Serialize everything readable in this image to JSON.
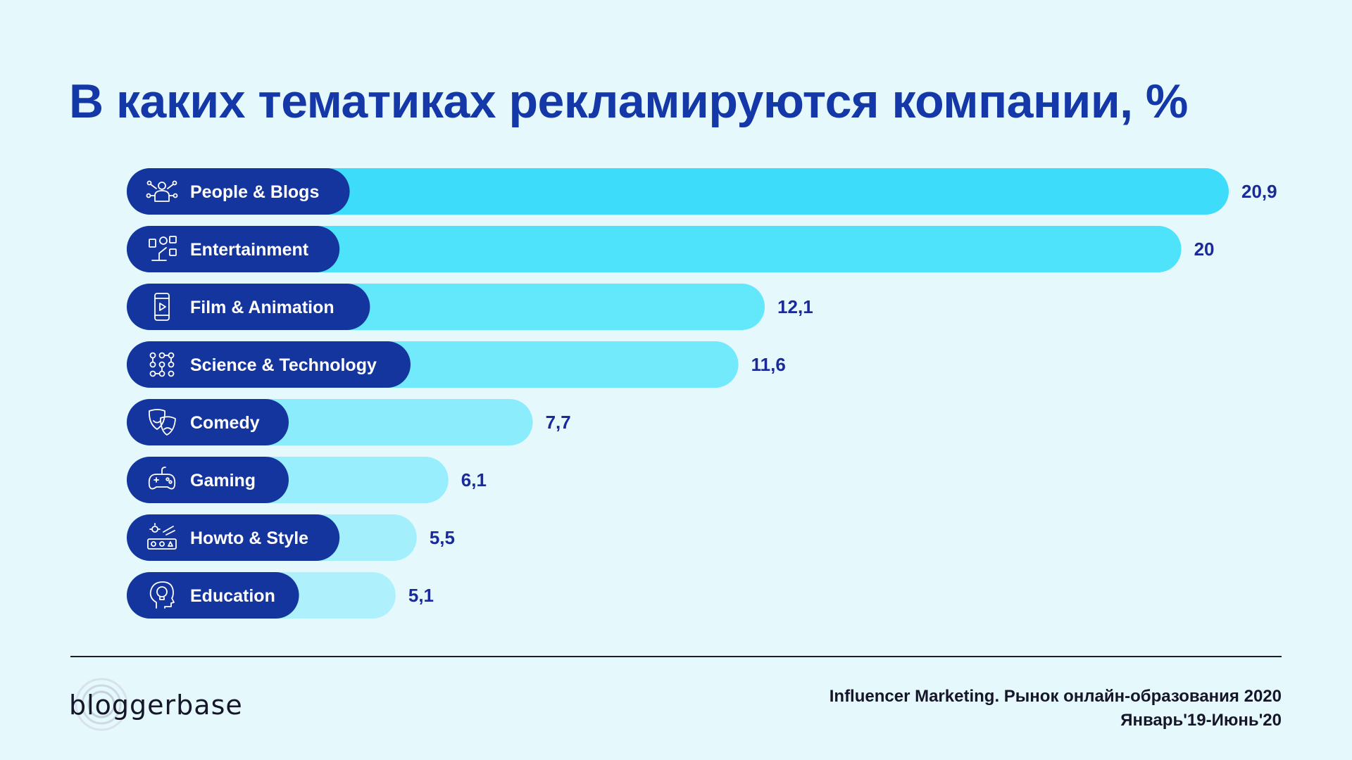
{
  "title": "В каких тематиках рекламируются компании, %",
  "chart_data": {
    "type": "bar",
    "orientation": "horizontal",
    "title": "В каких тематиках рекламируются компании, %",
    "categories": [
      "People & Blogs",
      "Entertainment",
      "Film & Animation",
      "Science & Technology",
      "Comedy",
      "Gaming",
      "Howto & Style",
      "Education"
    ],
    "values": [
      20.9,
      20,
      12.1,
      11.6,
      7.7,
      6.1,
      5.5,
      5.1
    ],
    "value_labels": [
      "20,9",
      "20",
      "12,1",
      "11,6",
      "7,7",
      "6,1",
      "5,5",
      "5,1"
    ],
    "icons": [
      "people-blogs-icon",
      "entertainment-icon",
      "film-phone-icon",
      "science-network-icon",
      "comedy-masks-icon",
      "gamepad-icon",
      "howto-style-icon",
      "education-head-icon"
    ],
    "xlabel": "",
    "ylabel": "",
    "xlim": [
      0,
      20.9
    ],
    "grid": false,
    "colors": {
      "label_pill": "#14349e",
      "bar_gradient": [
        "#3ddcfb",
        "#4ee2fb",
        "#63e7fb",
        "#73eafb",
        "#8becfc",
        "#98eefc",
        "#a3effc",
        "#aef1fd"
      ],
      "value_text": "#1a2a9a"
    }
  },
  "footer": {
    "line1": "Influencer Marketing. Рынок онлайн-образования 2020",
    "line2": "Январь'19-Июнь'20"
  },
  "logo": {
    "text": "bloggerbase"
  },
  "colors": {
    "background": "#e5f9fd",
    "title": "#1438a8",
    "divider": "#1c1c2e"
  }
}
